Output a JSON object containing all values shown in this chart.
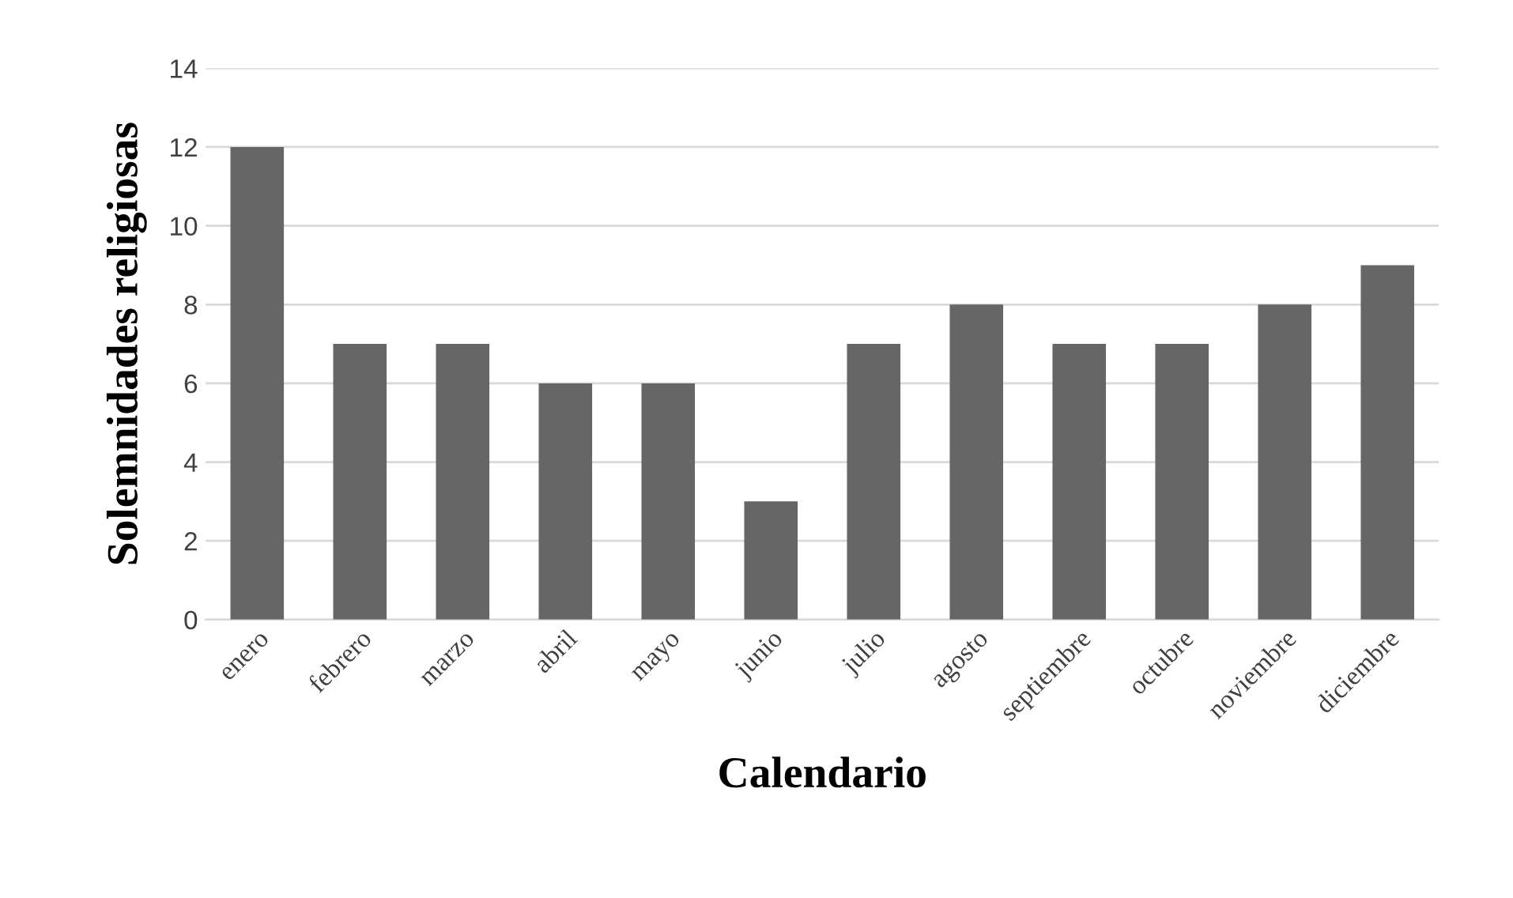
{
  "chart_data": {
    "type": "bar",
    "xlabel": "Calendario",
    "ylabel": "Solemnidades religiosas",
    "categories": [
      "enero",
      "febrero",
      "marzo",
      "abril",
      "mayo",
      "junio",
      "julio",
      "agosto",
      "septiembre",
      "octubre",
      "noviembre",
      "diciembre"
    ],
    "values": [
      12,
      7,
      7,
      6,
      6,
      3,
      7,
      8,
      7,
      7,
      8,
      9
    ],
    "color": "#666666",
    "ylim": [
      0,
      14
    ],
    "yticks": [
      0,
      2,
      4,
      6,
      8,
      10,
      12,
      14
    ],
    "grid": "y",
    "legend": false
  }
}
